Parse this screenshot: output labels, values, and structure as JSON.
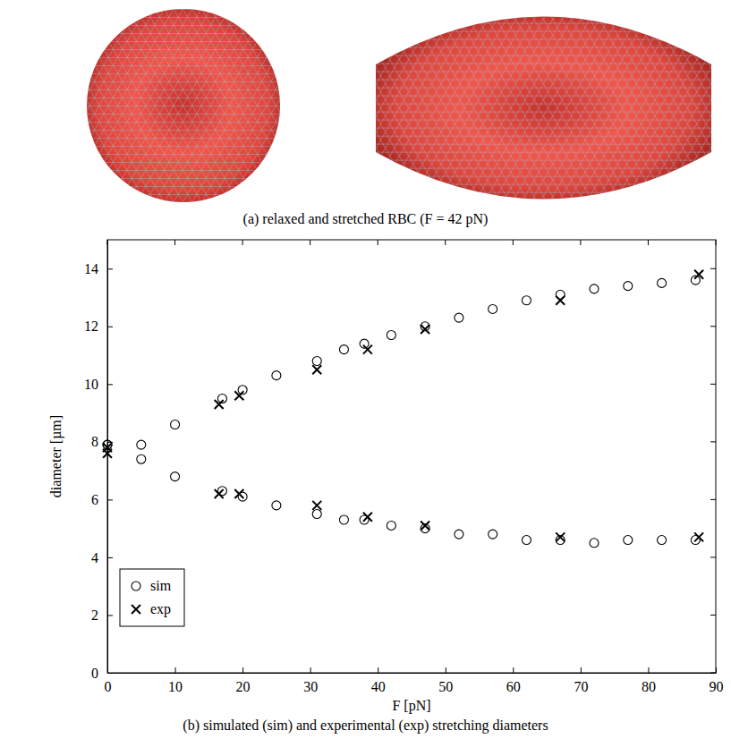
{
  "image_panel": {
    "caption": "(a) relaxed and stretched RBC (F = 42 pN)"
  },
  "chart_data": {
    "type": "scatter",
    "title": "(b) simulated (sim) and experimental (exp) stretching diameters",
    "xlabel": "F [pN]",
    "ylabel": "diameter [µm]",
    "xlim": [
      0,
      90
    ],
    "ylim": [
      0,
      15
    ],
    "xticks": [
      0,
      10,
      20,
      30,
      40,
      50,
      60,
      70,
      80,
      90
    ],
    "yticks": [
      0,
      2,
      4,
      6,
      8,
      10,
      12,
      14
    ],
    "grid": false,
    "legend": "bottom-left",
    "series": [
      {
        "name": "sim",
        "color": "#000000",
        "marker": "circle",
        "x": [
          0,
          5,
          10,
          17,
          20,
          25,
          31,
          35,
          38,
          42,
          47,
          52,
          57,
          62,
          67,
          72,
          77,
          82,
          87,
          0,
          5,
          10,
          17,
          20,
          25,
          31,
          35,
          38,
          42,
          47,
          52,
          57,
          62,
          67,
          72,
          77,
          82,
          87
        ],
        "values": [
          7.9,
          7.9,
          8.6,
          9.5,
          9.8,
          10.3,
          10.8,
          11.2,
          11.4,
          11.7,
          12.0,
          12.3,
          12.6,
          12.9,
          13.1,
          13.3,
          13.4,
          13.5,
          13.6,
          7.9,
          7.4,
          6.8,
          6.3,
          6.1,
          5.8,
          5.5,
          5.3,
          5.3,
          5.1,
          5.0,
          4.8,
          4.8,
          4.6,
          4.6,
          4.5,
          4.6,
          4.6,
          4.6
        ]
      },
      {
        "name": "exp",
        "color": "#000000",
        "marker": "x",
        "x": [
          0,
          16.5,
          19.5,
          31,
          38.5,
          47,
          67,
          87.5,
          0,
          16.5,
          19.5,
          31,
          38.5,
          47,
          67,
          87.5
        ],
        "values": [
          7.8,
          9.3,
          9.6,
          10.5,
          11.2,
          11.9,
          12.9,
          13.8,
          7.6,
          6.2,
          6.2,
          5.8,
          5.4,
          5.1,
          4.7,
          4.7
        ]
      }
    ]
  }
}
